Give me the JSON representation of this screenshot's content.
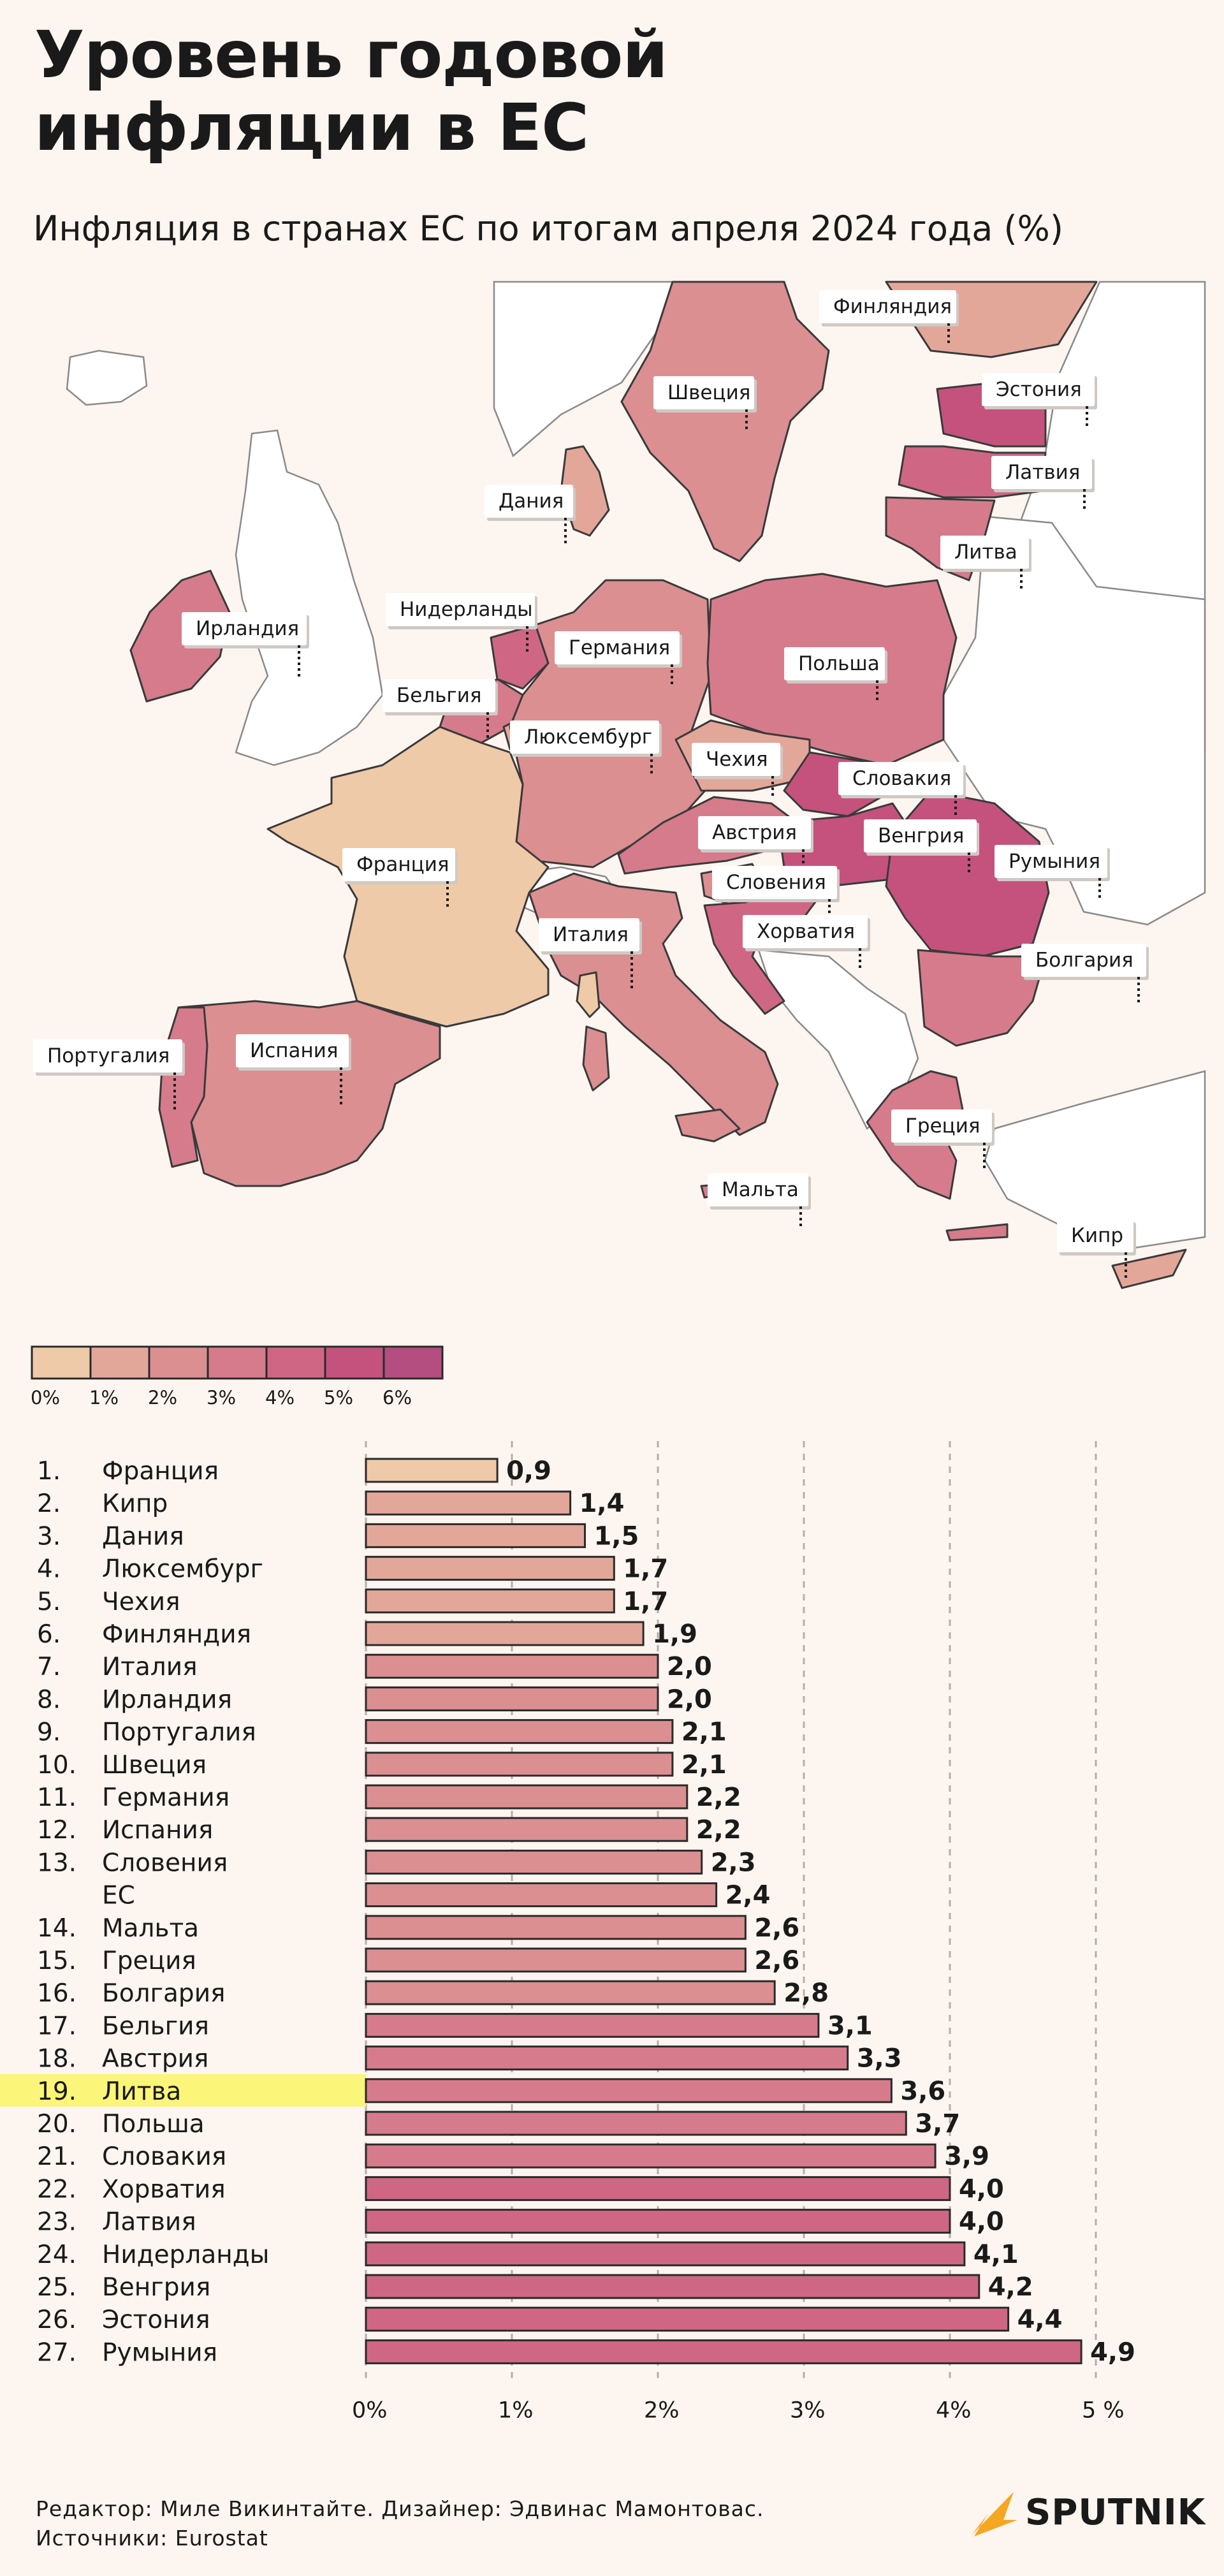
{
  "title_line1": "Уровень годовой",
  "title_line2": "инфляции в ЕС",
  "subtitle": "Инфляция в странах ЕС по итогам апреля 2024 года (%)",
  "palette": {
    "scale": [
      "#efcaa8",
      "#e3a79a",
      "#db8f91",
      "#d67b8b",
      "#cf6784",
      "#c5527c",
      "#b44d80"
    ],
    "non_eu_fill": "#ffffff",
    "border": "#3a3a3a",
    "eu_label": "#e41e26",
    "highlight": "#fbf57a",
    "brand_accent": "#f5a623"
  },
  "map_labels": [
    {
      "name": "Финляндия",
      "value": 1.9
    },
    {
      "name": "Швеция",
      "value": 2.1
    },
    {
      "name": "Эстония",
      "value": 4.4
    },
    {
      "name": "Латвия",
      "value": 4.0
    },
    {
      "name": "Литва",
      "value": 3.6
    },
    {
      "name": "Дания",
      "value": 1.5
    },
    {
      "name": "Нидерланды",
      "value": 4.1
    },
    {
      "name": "Ирландия",
      "value": 2.0
    },
    {
      "name": "Германия",
      "value": 2.2
    },
    {
      "name": "Польша",
      "value": 3.7
    },
    {
      "name": "Бельгия",
      "value": 3.1
    },
    {
      "name": "Люксембург",
      "value": 1.7
    },
    {
      "name": "Чехия",
      "value": 1.7
    },
    {
      "name": "Словакия",
      "value": 3.9
    },
    {
      "name": "Австрия",
      "value": 3.3
    },
    {
      "name": "Венгрия",
      "value": 4.2
    },
    {
      "name": "Франция",
      "value": 0.9
    },
    {
      "name": "Словения",
      "value": 2.3
    },
    {
      "name": "Румыния",
      "value": 4.9
    },
    {
      "name": "Италия",
      "value": 2.0
    },
    {
      "name": "Хорватия",
      "value": 4.0
    },
    {
      "name": "Болгария",
      "value": 2.8
    },
    {
      "name": "Португалия",
      "value": 2.1
    },
    {
      "name": "Испания",
      "value": 2.2
    },
    {
      "name": "Греция",
      "value": 2.6
    },
    {
      "name": "Мальта",
      "value": 2.6
    },
    {
      "name": "Кипр",
      "value": 1.4
    }
  ],
  "legend_ticks": [
    "0%",
    "1%",
    "2%",
    "3%",
    "4%",
    "5%",
    "6%"
  ],
  "chart_data": {
    "type": "bar",
    "orientation": "horizontal",
    "title": "",
    "x_ticks": [
      "0%",
      "1%",
      "2%",
      "3%",
      "4%",
      "5 %"
    ],
    "xlim": [
      0,
      5
    ],
    "grid": "vertical dashed",
    "value_labels": [
      "0,9",
      "1,4",
      "1,5",
      "1,7",
      "1,7",
      "1,9",
      "2,0",
      "2,0",
      "2,1",
      "2,1",
      "2,2",
      "2,2",
      "2,3",
      "2,4",
      "2,6",
      "2,6",
      "2,8",
      "3,1",
      "3,3",
      "3,6",
      "3,7",
      "3,9",
      "4,0",
      "4,0",
      "4,1",
      "4,2",
      "4,4",
      "4,9"
    ],
    "rows": [
      {
        "rank": "1.",
        "category": "Франция",
        "value": 0.9
      },
      {
        "rank": "2.",
        "category": "Кипр",
        "value": 1.4
      },
      {
        "rank": "3.",
        "category": "Дания",
        "value": 1.5
      },
      {
        "rank": "4.",
        "category": "Люксембург",
        "value": 1.7
      },
      {
        "rank": "5.",
        "category": "Чехия",
        "value": 1.7
      },
      {
        "rank": "6.",
        "category": "Финляндия",
        "value": 1.9
      },
      {
        "rank": "7.",
        "category": "Италия",
        "value": 2.0
      },
      {
        "rank": "8.",
        "category": "Ирландия",
        "value": 2.0
      },
      {
        "rank": "9.",
        "category": "Португалия",
        "value": 2.1
      },
      {
        "rank": "10.",
        "category": "Швеция",
        "value": 2.1
      },
      {
        "rank": "11.",
        "category": "Германия",
        "value": 2.2
      },
      {
        "rank": "12.",
        "category": "Испания",
        "value": 2.2
      },
      {
        "rank": "13.",
        "category": "Словения",
        "value": 2.3
      },
      {
        "rank": "",
        "category": "ЕС",
        "value": 2.4,
        "is_eu": true
      },
      {
        "rank": "14.",
        "category": "Мальта",
        "value": 2.6
      },
      {
        "rank": "15.",
        "category": "Греция",
        "value": 2.6
      },
      {
        "rank": "16.",
        "category": "Болгария",
        "value": 2.8
      },
      {
        "rank": "17.",
        "category": "Бельгия",
        "value": 3.1
      },
      {
        "rank": "18.",
        "category": "Австрия",
        "value": 3.3
      },
      {
        "rank": "19.",
        "category": "Литва",
        "value": 3.6,
        "highlighted": true
      },
      {
        "rank": "20.",
        "category": "Польша",
        "value": 3.7
      },
      {
        "rank": "21.",
        "category": "Словакия",
        "value": 3.9
      },
      {
        "rank": "22.",
        "category": "Хорватия",
        "value": 4.0
      },
      {
        "rank": "23.",
        "category": "Латвия",
        "value": 4.0
      },
      {
        "rank": "24.",
        "category": "Нидерланды",
        "value": 4.1
      },
      {
        "rank": "25.",
        "category": "Венгрия",
        "value": 4.2
      },
      {
        "rank": "26.",
        "category": "Эстония",
        "value": 4.4
      },
      {
        "rank": "27.",
        "category": "Румыния",
        "value": 4.9
      }
    ]
  },
  "footer": {
    "credits": "Редактор: Миле Викинтайте.  Дизайнер: Эдвинас Мамонтовас.",
    "sources": "Источники: Eurostat"
  },
  "brand": {
    "name": "SPUTNIK",
    "logo_icon": "sputnik-logo-icon"
  }
}
